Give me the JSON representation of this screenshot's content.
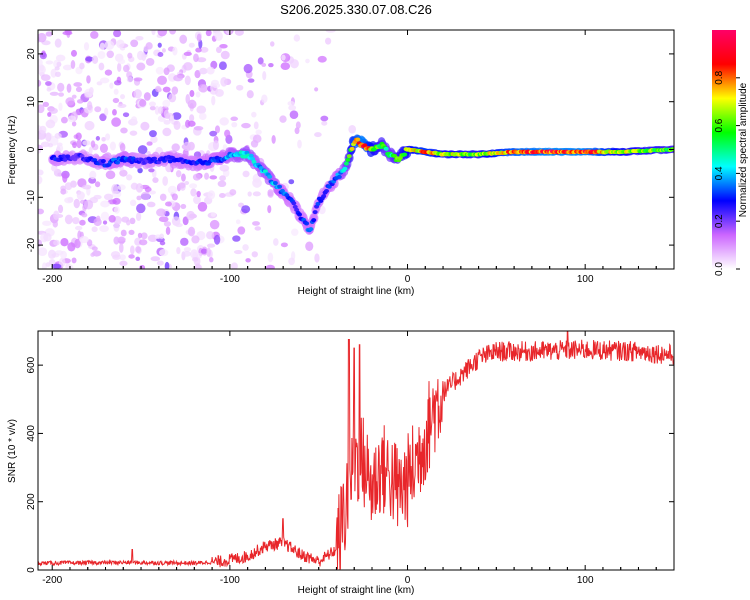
{
  "title": "S206.2025.330.07.08.C26",
  "colors": {
    "snr_line": "#e8262a",
    "axes": "#000000",
    "bg": "#ffffff"
  },
  "chart_data": [
    {
      "type": "heatmap",
      "name": "spectrogram",
      "title": "S206.2025.330.07.08.C26",
      "xlabel": "Height of straight line (km)",
      "ylabel": "Frequency (Hz)",
      "xlim": [
        -208,
        150
      ],
      "ylim": [
        -25,
        25
      ],
      "xticks": [
        -200,
        -100,
        0,
        100
      ],
      "yticks": [
        -20,
        -10,
        0,
        10,
        20
      ],
      "xtick_labels": [
        "-200",
        "-100",
        "0",
        "100"
      ],
      "ytick_labels": [
        "-20",
        "-10",
        "0",
        "10",
        "20"
      ],
      "colorbar": {
        "label": "Normalized spectral amplitude",
        "range": [
          0,
          1
        ],
        "ticks": [
          "0.0",
          "0.2",
          "0.4",
          "0.6",
          "0.8"
        ],
        "tick_values": [
          0,
          0.2,
          0.4,
          0.6,
          0.8
        ],
        "stops": [
          "#ffffff",
          "#cc66ff",
          "#0000ff",
          "#00ffff",
          "#00ff00",
          "#ffff00",
          "#ff0000",
          "#ff0066"
        ]
      },
      "ridge": {
        "x": [
          -198,
          -185,
          -170,
          -160,
          -150,
          -135,
          -120,
          -105,
          -100,
          -90,
          -85,
          -80,
          -75,
          -70,
          -65,
          -60,
          -55,
          -50,
          -45,
          -40,
          -35,
          -30,
          -25,
          -20,
          -15,
          -10,
          -5,
          0,
          10,
          20,
          40,
          60,
          80,
          100,
          120,
          150
        ],
        "f": [
          -2,
          -1.5,
          -3,
          -2,
          -2.5,
          -2,
          -3,
          -2,
          -1,
          -1,
          -3,
          -5,
          -7,
          -9,
          -11,
          -14,
          -17,
          -11,
          -8,
          -6,
          -4,
          2,
          1,
          0,
          1,
          -1,
          -2,
          0,
          -0.5,
          -1,
          -1,
          -0.5,
          -0.5,
          -0.5,
          -0.5,
          0
        ],
        "amp": [
          0.3,
          0.25,
          0.3,
          0.35,
          0.25,
          0.3,
          0.3,
          0.35,
          0.4,
          0.45,
          0.4,
          0.42,
          0.4,
          0.35,
          0.3,
          0.3,
          0.35,
          0.3,
          0.3,
          0.35,
          0.45,
          0.8,
          0.9,
          0.7,
          0.6,
          0.5,
          0.6,
          0.7,
          0.8,
          0.7,
          0.65,
          0.85,
          0.9,
          0.9,
          0.7,
          0.6
        ]
      }
    },
    {
      "type": "line",
      "name": "snr",
      "xlabel": "Height of straight line (km)",
      "ylabel": "SNR (10 * v/v)",
      "xlim": [
        -208,
        150
      ],
      "ylim": [
        0,
        700
      ],
      "xticks": [
        -200,
        -100,
        0,
        100
      ],
      "yticks": [
        0,
        200,
        400,
        600
      ],
      "xtick_labels": [
        "-200",
        "-100",
        "0",
        "100"
      ],
      "ytick_labels": [
        "0",
        "200",
        "400",
        "600"
      ],
      "trend": {
        "x": [
          -208,
          -160,
          -120,
          -105,
          -90,
          -80,
          -70,
          -60,
          -50,
          -40,
          -35,
          -30,
          -25,
          -20,
          -15,
          -10,
          -5,
          0,
          5,
          10,
          15,
          20,
          30,
          40,
          50,
          70,
          100,
          130,
          150
        ],
        "y": [
          20,
          22,
          20,
          25,
          40,
          70,
          80,
          45,
          25,
          60,
          180,
          330,
          320,
          240,
          300,
          280,
          230,
          260,
          320,
          390,
          470,
          520,
          570,
          620,
          640,
          640,
          645,
          640,
          630
        ]
      },
      "spikes": [
        {
          "x": -70,
          "y": 150
        },
        {
          "x": -33,
          "y": 675
        },
        {
          "x": -30,
          "y": 650
        },
        {
          "x": -27,
          "y": 660
        },
        {
          "x": -155,
          "y": 60
        },
        {
          "x": 90,
          "y": 700
        }
      ]
    }
  ]
}
